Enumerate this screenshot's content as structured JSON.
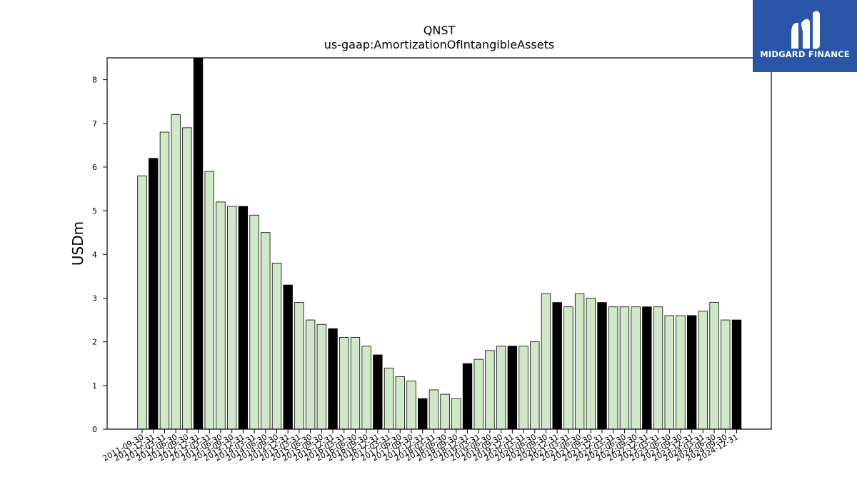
{
  "chart_data": {
    "type": "bar",
    "title": "QNST",
    "subtitle": "us-gaap:AmortizationOfIntangibleAssets",
    "ylabel": "USDm",
    "xlabel": "",
    "ylim": [
      0,
      8.5
    ],
    "yticks": [
      0,
      1,
      2,
      3,
      4,
      5,
      6,
      7,
      8
    ],
    "grid": false,
    "categories": [
      "2011-09-30",
      "2011-12-31",
      "2012-03-31",
      "2012-06-30",
      "2012-09-30",
      "2012-12-31",
      "2013-03-31",
      "2013-06-30",
      "2013-09-30",
      "2013-12-31",
      "2014-03-31",
      "2014-06-30",
      "2014-09-30",
      "2014-12-31",
      "2015-03-31",
      "2015-06-30",
      "2015-09-30",
      "2015-12-31",
      "2016-03-31",
      "2016-06-30",
      "2016-09-30",
      "2016-12-31",
      "2017-03-31",
      "2017-06-30",
      "2017-09-30",
      "2017-12-31",
      "2018-03-31",
      "2018-06-30",
      "2018-09-30",
      "2018-12-31",
      "2019-03-31",
      "2019-06-30",
      "2019-09-30",
      "2019-12-31",
      "2020-03-31",
      "2020-06-30",
      "2020-09-30",
      "2020-12-31",
      "2021-03-31",
      "2021-06-30",
      "2021-09-30",
      "2021-12-31",
      "2022-03-31",
      "2022-06-30",
      "2022-09-30",
      "2022-12-31",
      "2023-03-31",
      "2023-06-30",
      "2023-09-30",
      "2023-12-31",
      "2024-03-31",
      "2024-06-30",
      "2024-09-30",
      "2024-12-31"
    ],
    "values": [
      5.8,
      6.2,
      6.8,
      7.2,
      6.9,
      8.5,
      5.9,
      5.2,
      5.1,
      5.1,
      4.9,
      4.5,
      3.8,
      3.3,
      2.9,
      2.5,
      2.4,
      2.3,
      2.1,
      2.1,
      1.9,
      1.7,
      1.4,
      1.2,
      1.1,
      0.7,
      0.9,
      0.8,
      0.7,
      1.5,
      1.6,
      1.8,
      1.9,
      1.9,
      1.9,
      2.0,
      3.1,
      2.9,
      2.8,
      3.1,
      3.0,
      2.9,
      2.8,
      2.8,
      2.8,
      2.8,
      2.8,
      2.6,
      2.6,
      2.6,
      2.7,
      2.9,
      2.5,
      2.5
    ],
    "highlighted": [
      false,
      true,
      false,
      false,
      false,
      true,
      false,
      false,
      false,
      true,
      false,
      false,
      false,
      true,
      false,
      false,
      false,
      true,
      false,
      false,
      false,
      true,
      false,
      false,
      false,
      true,
      false,
      false,
      false,
      true,
      false,
      false,
      false,
      true,
      false,
      false,
      false,
      true,
      false,
      false,
      false,
      true,
      false,
      false,
      false,
      true,
      false,
      false,
      false,
      true,
      false,
      false,
      false,
      true
    ],
    "colors": {
      "bar": "#cfe8c8",
      "highlight": "#000000",
      "edge": "#000000"
    }
  },
  "logo": {
    "text": "MIDGARD FINANCE",
    "color": "#2a56a8"
  }
}
